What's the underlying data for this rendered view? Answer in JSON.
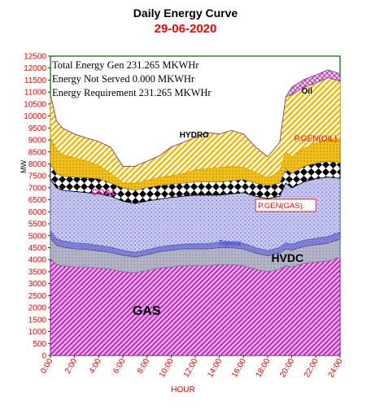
{
  "title": "Daily Energy Curve",
  "subtitle": "29-06-2020",
  "colors": {
    "plot_bg": "#ffffff",
    "plot_border": "#006400",
    "gas": "#cc33cc",
    "hvdc": "#a0a0b8",
    "tripura": "#7b7bd6",
    "pgen_gas": "#b7b7e8",
    "coal": "#000000",
    "hydro": "#f2b800",
    "pgen_oil": "#f5d84a",
    "oil": "#cc66cc",
    "tick_color": "#ff0000",
    "title_color": "#000000",
    "subtitle_color": "#ff0000"
  },
  "chart_data": {
    "type": "area",
    "stacked": true,
    "xlabel": "HOUR",
    "ylabel": "MW",
    "ylim": [
      0,
      12500
    ],
    "ytick_step": 500,
    "xlim": [
      0,
      24
    ],
    "x_ticks": [
      "0:00",
      "2:00",
      "4:00",
      "6:00",
      "8:00",
      "10:00",
      "12:00",
      "14:00",
      "16:00",
      "18:00",
      "20:00",
      "22:00",
      "24:00"
    ],
    "grid": false,
    "x": [
      0,
      0.5,
      1,
      2,
      3,
      4,
      5,
      6,
      7,
      8,
      9,
      10,
      11,
      12,
      13,
      14,
      15,
      16,
      17,
      18,
      19,
      19.5,
      20,
      21,
      22,
      23,
      24
    ],
    "series": [
      {
        "name": "GAS",
        "values": [
          4050,
          3800,
          3750,
          3700,
          3700,
          3650,
          3600,
          3500,
          3450,
          3550,
          3650,
          3700,
          3750,
          3750,
          3750,
          3800,
          3800,
          3750,
          3600,
          3500,
          3600,
          3750,
          3700,
          3850,
          3900,
          3950,
          4100
        ]
      },
      {
        "name": "HVDC",
        "values": [
          850,
          800,
          780,
          750,
          730,
          720,
          700,
          680,
          660,
          660,
          680,
          700,
          700,
          700,
          700,
          700,
          700,
          700,
          680,
          660,
          680,
          700,
          700,
          700,
          720,
          740,
          760
        ]
      },
      {
        "name": "Tripura",
        "values": [
          300,
          280,
          260,
          250,
          240,
          230,
          220,
          210,
          200,
          200,
          200,
          200,
          200,
          210,
          220,
          230,
          230,
          230,
          220,
          220,
          230,
          250,
          250,
          260,
          270,
          280,
          300
        ]
      },
      {
        "name": "P.GEN(GAS).",
        "values": [
          2150,
          2120,
          2110,
          2150,
          2130,
          2150,
          2130,
          2050,
          2040,
          2040,
          2000,
          2000,
          2000,
          2040,
          2030,
          1970,
          2020,
          2120,
          2150,
          2170,
          2140,
          2500,
          2350,
          2440,
          2490,
          2480,
          2240
        ]
      },
      {
        "name": "COAL",
        "values": [
          650,
          600,
          590,
          600,
          630,
          630,
          550,
          560,
          550,
          560,
          570,
          550,
          550,
          550,
          550,
          550,
          550,
          550,
          550,
          550,
          550,
          600,
          600,
          650,
          650,
          650,
          650
        ]
      },
      {
        "name": "HYDRO",
        "values": [
          1100,
          1000,
          900,
          800,
          700,
          550,
          400,
          200,
          300,
          300,
          330,
          350,
          400,
          500,
          550,
          600,
          600,
          500,
          450,
          300,
          500,
          700,
          700,
          750,
          850,
          950,
          1000
        ]
      },
      {
        "name": "P.GEN(OIL).",
        "values": [
          1800,
          1200,
          1100,
          1000,
          950,
          1000,
          1100,
          700,
          700,
          800,
          900,
          1200,
          1300,
          1350,
          1500,
          1400,
          1500,
          1400,
          1050,
          900,
          1200,
          2300,
          2600,
          2550,
          2500,
          2550,
          2400
        ]
      },
      {
        "name": "Oil",
        "values": [
          0,
          0,
          0,
          0,
          0,
          0,
          0,
          0,
          0,
          0,
          0,
          0,
          0,
          0,
          0,
          0,
          0,
          0,
          0,
          0,
          0,
          0,
          300,
          320,
          330,
          330,
          310
        ]
      }
    ],
    "info_box": [
      "Total Energy Gen 231.265  MKWHr",
      "Energy Not Served  0.000 MKWHr",
      "Energy Requirement      231.265 MKWHr"
    ],
    "annotations": {
      "gas": "GAS",
      "hvdc": "HVDC",
      "tripura": "Tripura",
      "pgen_gas": "P.GEN(GAS).",
      "coal": "COAL",
      "hydro": "HYDRO",
      "pgen_oil": "P.GEN(OIL).",
      "oil": "Oil"
    }
  }
}
